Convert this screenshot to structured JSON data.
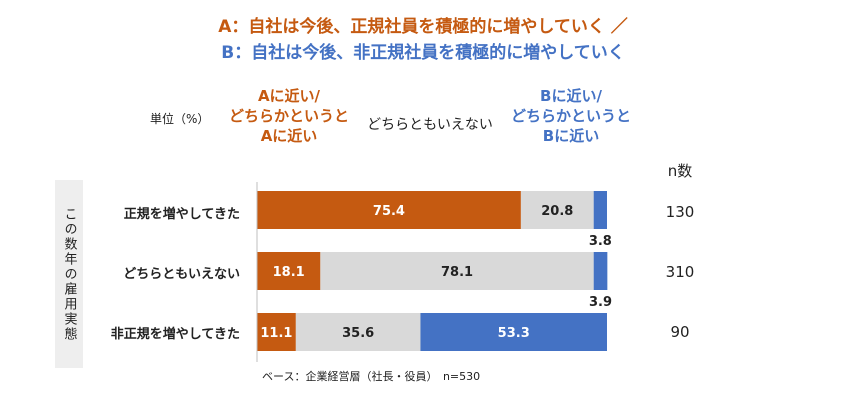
{
  "title_a": "A：自社は今後、正規社員を積極的に増やしていく ／",
  "title_b": "B：自社は今後、非正規社員を積極的に増やしていく",
  "unit_label": "単位（%）",
  "header_a": [
    "Aに近い/",
    "どちらかというと",
    "Aに近い"
  ],
  "header_mid": "どちらともいえない",
  "header_b": [
    "Bに近い/",
    "どちらかというと",
    "Bに近い"
  ],
  "n_header": "n数",
  "side_label": "この数年の雇用実態",
  "base_note": "ベース：企業経営層（社長・役員）　n=530",
  "colors": {
    "a": "#c55a11",
    "mid": "#d9d9d9",
    "b": "#4472c4"
  },
  "chart_data": {
    "type": "bar",
    "orientation": "horizontal",
    "stacked": true,
    "categories": [
      "正規を増やしてきた",
      "どちらともいえない",
      "非正規を増やしてきた"
    ],
    "n": [
      "130",
      "310",
      "90"
    ],
    "xlim": [
      0,
      100
    ],
    "series": [
      {
        "key": "a",
        "values": [
          75.4,
          18.1,
          11.1
        ]
      },
      {
        "key": "mid",
        "values": [
          20.8,
          78.1,
          35.6
        ]
      },
      {
        "key": "b",
        "values": [
          3.8,
          3.9,
          53.3
        ]
      }
    ],
    "labels": [
      [
        "75.4",
        "20.8",
        "3.8"
      ],
      [
        "18.1",
        "78.1",
        "3.9"
      ],
      [
        "11.1",
        "35.6",
        "53.3"
      ]
    ]
  }
}
